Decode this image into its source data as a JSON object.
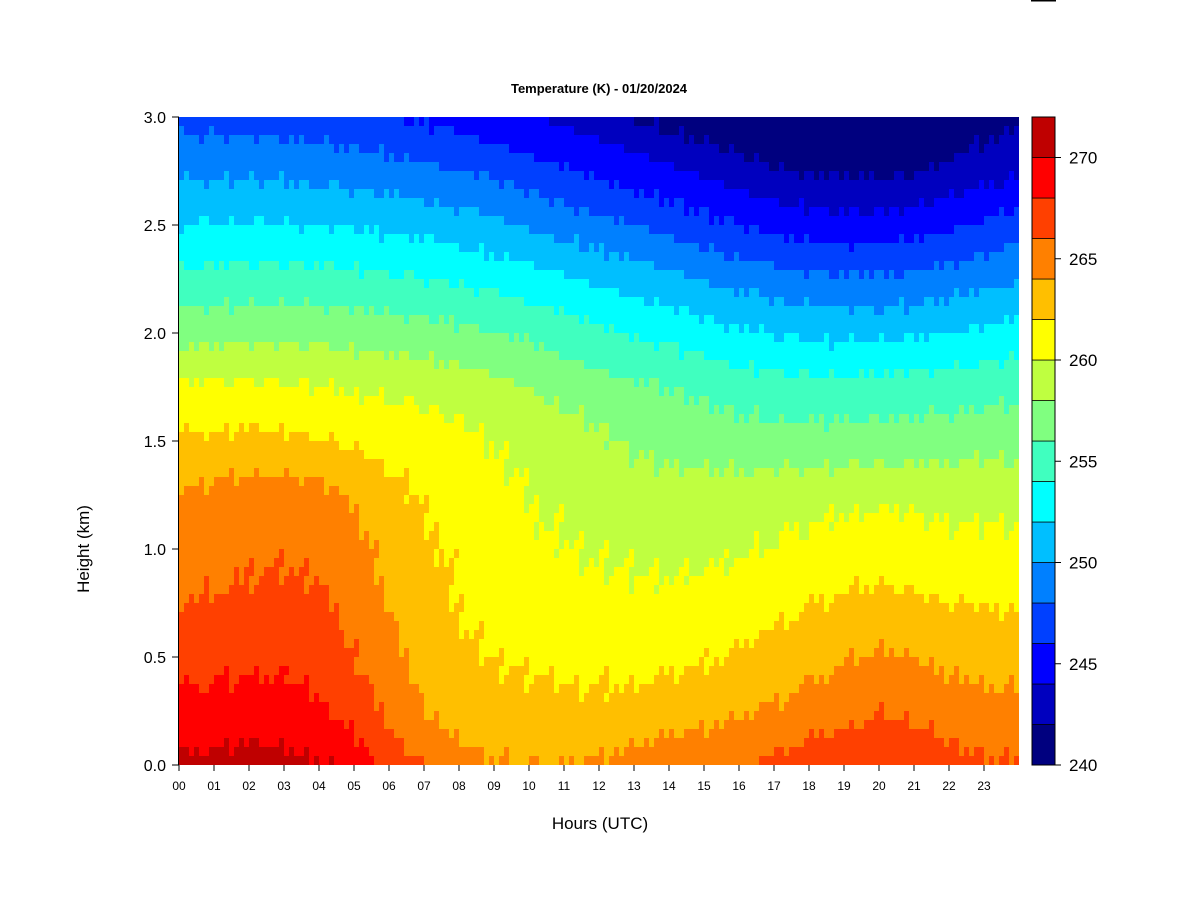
{
  "chart_data": {
    "type": "heatmap",
    "title": "Temperature (K) - 01/20/2024",
    "xlabel": "Hours (UTC)",
    "ylabel": "Height (km)",
    "xlim": [
      0,
      24
    ],
    "ylim": [
      0,
      3.0
    ],
    "x_ticks": [
      "00",
      "01",
      "02",
      "03",
      "04",
      "05",
      "06",
      "07",
      "08",
      "09",
      "10",
      "11",
      "12",
      "13",
      "14",
      "15",
      "16",
      "17",
      "18",
      "19",
      "20",
      "21",
      "22",
      "23"
    ],
    "y_ticks": [
      "0.0",
      "0.5",
      "1.0",
      "1.5",
      "2.0",
      "2.5",
      "3.0"
    ],
    "x_hours": [
      0,
      1,
      2,
      3,
      4,
      5,
      6,
      7,
      8,
      9,
      10,
      11,
      12,
      13,
      14,
      15,
      16,
      17,
      18,
      19,
      20,
      21,
      22,
      23,
      24
    ],
    "y_heights": [
      0.0,
      0.1,
      0.25,
      0.5,
      0.75,
      1.0,
      1.25,
      1.5,
      1.75,
      2.0,
      2.25,
      2.5,
      2.75,
      3.0
    ],
    "values": [
      [
        270.5,
        270.6,
        270.8,
        270.6,
        270.2,
        269.2,
        267.5,
        266.0,
        265.0,
        264.2,
        264.0,
        264.0,
        264.3,
        264.8,
        265.0,
        265.3,
        265.6,
        266.4,
        267.0,
        267.2,
        267.6,
        267.2,
        266.8,
        266.3,
        266.2
      ],
      [
        269.6,
        269.8,
        270.0,
        269.9,
        269.5,
        268.3,
        266.6,
        265.0,
        264.0,
        263.6,
        263.5,
        263.5,
        263.5,
        264.0,
        264.3,
        264.6,
        265.0,
        265.6,
        266.3,
        266.5,
        267.3,
        266.8,
        266.1,
        265.6,
        265.5
      ],
      [
        268.6,
        268.8,
        268.9,
        268.8,
        268.3,
        267.2,
        265.6,
        264.0,
        263.2,
        262.8,
        262.6,
        262.5,
        262.5,
        262.6,
        263.0,
        263.3,
        263.8,
        264.2,
        264.8,
        265.3,
        265.9,
        265.5,
        264.9,
        264.6,
        264.5
      ],
      [
        267.2,
        267.4,
        267.6,
        267.6,
        267.3,
        266.0,
        264.6,
        263.4,
        262.4,
        261.9,
        261.6,
        261.5,
        261.4,
        261.4,
        261.6,
        261.8,
        262.2,
        262.8,
        263.3,
        263.8,
        264.3,
        264.0,
        263.6,
        263.4,
        263.3
      ],
      [
        265.9,
        266.2,
        266.4,
        266.5,
        266.3,
        265.2,
        263.9,
        262.9,
        261.9,
        261.3,
        261.0,
        260.8,
        260.6,
        260.5,
        260.5,
        260.7,
        261.0,
        261.4,
        261.9,
        262.3,
        262.6,
        262.4,
        262.0,
        261.9,
        261.8
      ],
      [
        265.0,
        265.4,
        265.6,
        265.7,
        265.5,
        264.6,
        263.4,
        262.4,
        261.6,
        260.9,
        260.4,
        260.1,
        259.8,
        259.6,
        259.5,
        259.6,
        259.8,
        260.1,
        260.5,
        260.8,
        261.1,
        260.9,
        260.6,
        260.5,
        260.5
      ],
      [
        264.2,
        264.6,
        264.8,
        264.9,
        264.7,
        263.7,
        262.6,
        261.8,
        261.1,
        260.5,
        260.0,
        259.6,
        259.2,
        259.0,
        258.8,
        258.8,
        258.9,
        259.1,
        259.3,
        259.5,
        259.6,
        259.5,
        259.4,
        259.4,
        259.4
      ],
      [
        262.3,
        262.4,
        262.5,
        262.4,
        262.2,
        261.7,
        261.3,
        260.9,
        260.5,
        260.0,
        259.4,
        258.9,
        258.3,
        257.8,
        257.4,
        257.1,
        256.9,
        256.8,
        256.8,
        256.8,
        256.9,
        256.9,
        257.0,
        257.2,
        257.3
      ],
      [
        260.2,
        260.3,
        260.3,
        260.2,
        260.0,
        259.8,
        259.6,
        259.4,
        259.1,
        258.6,
        258.0,
        257.4,
        256.8,
        256.3,
        255.9,
        255.5,
        255.1,
        254.8,
        254.6,
        254.6,
        254.7,
        254.8,
        255.0,
        255.3,
        255.5
      ],
      [
        257.2,
        257.3,
        257.4,
        257.4,
        257.3,
        257.2,
        257.0,
        256.8,
        256.5,
        256.1,
        255.6,
        255.0,
        254.4,
        253.8,
        253.3,
        252.8,
        252.3,
        251.9,
        251.6,
        251.5,
        251.5,
        251.7,
        252.0,
        252.4,
        252.8
      ],
      [
        254.6,
        254.6,
        254.7,
        254.7,
        254.6,
        254.5,
        254.3,
        254.0,
        253.7,
        253.3,
        252.8,
        252.3,
        251.7,
        251.1,
        250.5,
        249.9,
        249.3,
        248.8,
        248.5,
        248.3,
        248.3,
        248.5,
        248.9,
        249.4,
        249.8
      ],
      [
        252.1,
        252.1,
        252.2,
        252.1,
        252.0,
        251.8,
        251.6,
        251.3,
        250.9,
        250.4,
        249.8,
        249.2,
        248.6,
        247.9,
        247.3,
        246.6,
        246.0,
        245.4,
        245.0,
        244.8,
        244.8,
        245.1,
        245.6,
        246.2,
        246.8
      ],
      [
        249.6,
        249.6,
        249.6,
        249.5,
        249.3,
        249.1,
        248.8,
        248.4,
        248.0,
        247.5,
        246.9,
        246.3,
        245.6,
        244.9,
        244.2,
        243.5,
        242.8,
        242.2,
        241.8,
        241.6,
        241.6,
        241.9,
        242.4,
        243.1,
        243.8
      ],
      [
        247.2,
        247.2,
        247.1,
        247.0,
        246.8,
        246.5,
        246.1,
        245.7,
        245.2,
        244.6,
        244.0,
        243.3,
        242.6,
        241.9,
        241.2,
        240.6,
        240.1,
        239.6,
        239.3,
        239.2,
        239.3,
        239.7,
        240.3,
        241.0,
        241.7
      ]
    ],
    "colorbar": {
      "levels": [
        240,
        242,
        244,
        246,
        248,
        250,
        252,
        254,
        256,
        258,
        260,
        262,
        264,
        266,
        268,
        270,
        272
      ],
      "colors": [
        "#00007f",
        "#0000bf",
        "#0000ff",
        "#0040ff",
        "#0080ff",
        "#00bfff",
        "#00ffff",
        "#40ffbf",
        "#80ff80",
        "#bfff40",
        "#ffff00",
        "#ffbf00",
        "#ff8000",
        "#ff4000",
        "#ff0000",
        "#bf0000",
        "#7f0000"
      ],
      "tick_labels": [
        "240",
        "245",
        "250",
        "255",
        "260",
        "265",
        "270"
      ],
      "tick_values": [
        240,
        245,
        250,
        255,
        260,
        265,
        270
      ]
    },
    "grid": false,
    "legend": "right colorbar"
  }
}
